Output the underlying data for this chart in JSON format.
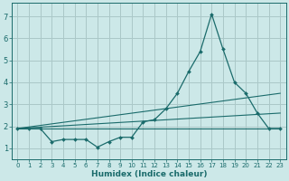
{
  "xlabel": "Humidex (Indice chaleur)",
  "ylabel": "",
  "bg_color": "#cce8e8",
  "grid_color": "#aac8c8",
  "line_color": "#1a6b6b",
  "xlim": [
    -0.5,
    23.5
  ],
  "ylim": [
    0.5,
    7.6
  ],
  "xticks": [
    0,
    1,
    2,
    3,
    4,
    5,
    6,
    7,
    8,
    9,
    10,
    11,
    12,
    13,
    14,
    15,
    16,
    17,
    18,
    19,
    20,
    21,
    22,
    23
  ],
  "yticks": [
    1,
    2,
    3,
    4,
    5,
    6,
    7
  ],
  "main_line": {
    "x": [
      0,
      1,
      2,
      3,
      4,
      5,
      6,
      7,
      8,
      9,
      10,
      11,
      12,
      13,
      14,
      15,
      16,
      17,
      18,
      19,
      20,
      21,
      22,
      23
    ],
    "y": [
      1.9,
      1.9,
      1.9,
      1.3,
      1.4,
      1.4,
      1.4,
      1.05,
      1.3,
      1.5,
      1.5,
      2.2,
      2.3,
      2.8,
      3.5,
      4.5,
      5.4,
      7.1,
      5.5,
      4.0,
      3.5,
      2.6,
      1.9,
      1.9
    ]
  },
  "trend_lines": [
    {
      "x": [
        0,
        23
      ],
      "y": [
        1.9,
        3.5
      ]
    },
    {
      "x": [
        0,
        23
      ],
      "y": [
        1.9,
        2.6
      ]
    },
    {
      "x": [
        0,
        23
      ],
      "y": [
        1.9,
        1.9
      ]
    }
  ]
}
